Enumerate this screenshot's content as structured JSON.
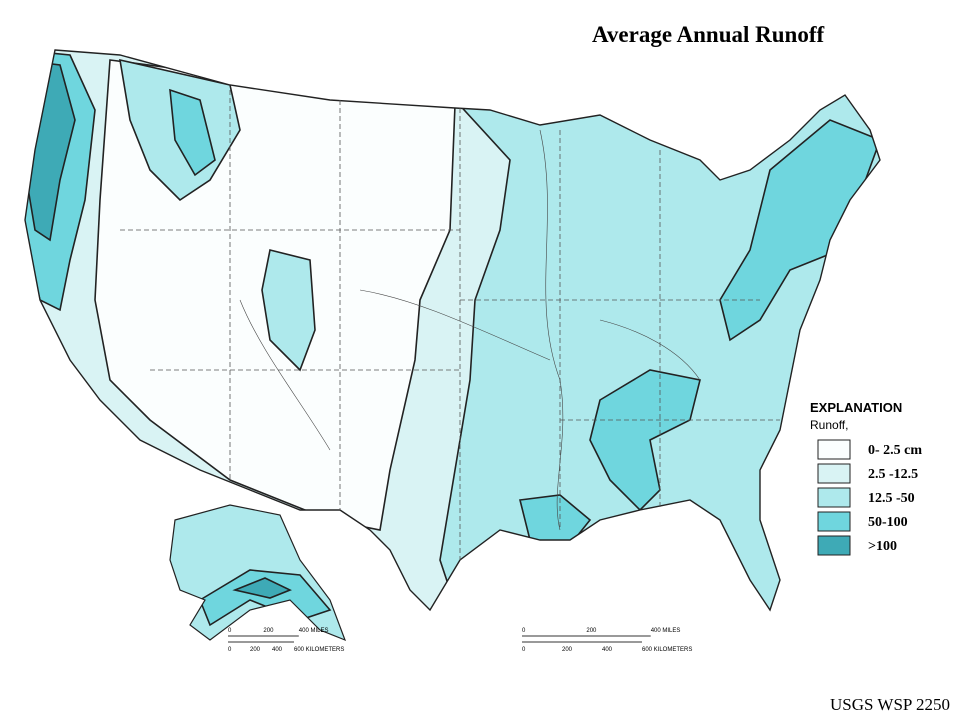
{
  "title": "Average Annual Runoff",
  "legend": {
    "heading": "EXPLANATION",
    "subheading": "Runoff,",
    "items": [
      {
        "label": "0- 2.5 cm",
        "color": "#fbfefe"
      },
      {
        "label": "2.5 -12.5",
        "color": "#d9f3f4"
      },
      {
        "label": "12.5 -50",
        "color": "#aee9ec"
      },
      {
        "label": "50-100",
        "color": "#6fd6de"
      },
      {
        "label": ">100",
        "color": "#3eaab6"
      }
    ]
  },
  "scale_bars": [
    {
      "miles": [
        "0",
        "200",
        "400 MILES"
      ],
      "kilometers": [
        "0",
        "200",
        "400",
        "600 KILOMETERS"
      ]
    },
    {
      "miles": [
        "0",
        "200",
        "400 MILES"
      ],
      "kilometers": [
        "0",
        "200",
        "400",
        "600 KILOMETERS"
      ]
    }
  ],
  "source": "USGS WSP 2250"
}
